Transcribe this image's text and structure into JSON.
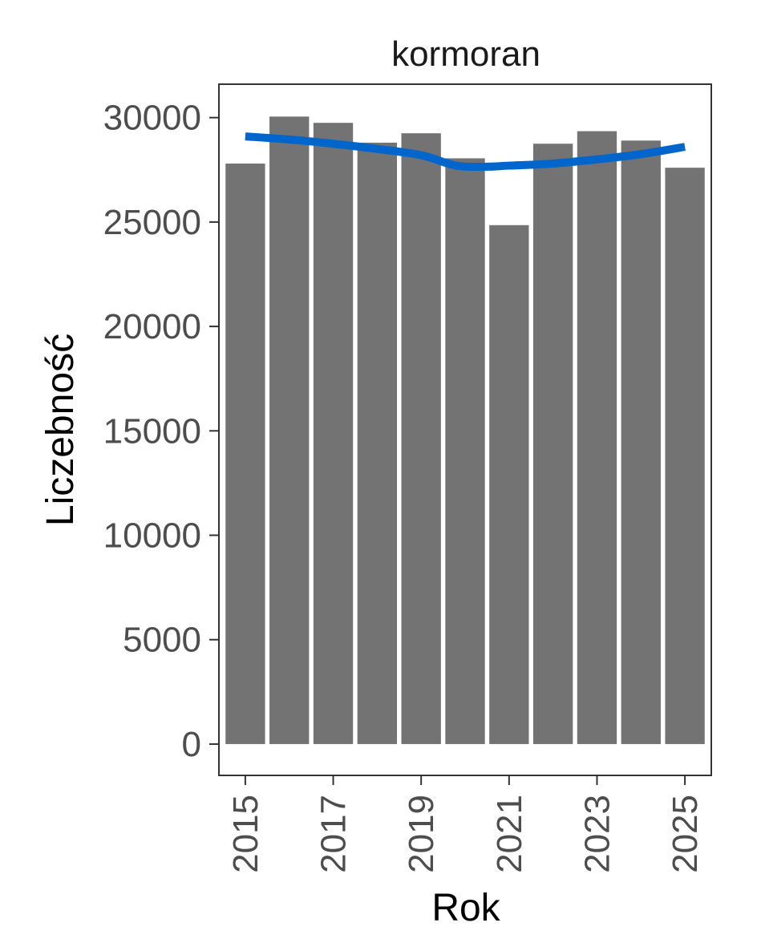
{
  "chart_data": {
    "type": "bar",
    "title": "kormoran",
    "xlabel": "Rok",
    "ylabel": "Liczebność",
    "categories": [
      2015,
      2016,
      2017,
      2018,
      2019,
      2020,
      2021,
      2022,
      2023,
      2024,
      2025
    ],
    "values": [
      27800,
      30050,
      29750,
      28800,
      29250,
      28050,
      24850,
      28750,
      29350,
      28900,
      27600
    ],
    "xticks": [
      "2015",
      "2017",
      "2019",
      "2021",
      "2023",
      "2025"
    ],
    "yticks": [
      "0",
      "5000",
      "10000",
      "15000",
      "20000",
      "25000",
      "30000"
    ],
    "ylim": [
      -1500,
      31600
    ],
    "xlim": [
      2014.4,
      2025.6
    ],
    "grid": false,
    "bar_color": "#737373",
    "trend": {
      "color": "#0066cc",
      "x": [
        2015,
        2016,
        2017,
        2018,
        2019,
        2019.8,
        2020.5,
        2021,
        2022,
        2023,
        2024,
        2025
      ],
      "y": [
        29100,
        28950,
        28750,
        28500,
        28200,
        27700,
        27650,
        27700,
        27800,
        28000,
        28250,
        28600
      ]
    }
  }
}
